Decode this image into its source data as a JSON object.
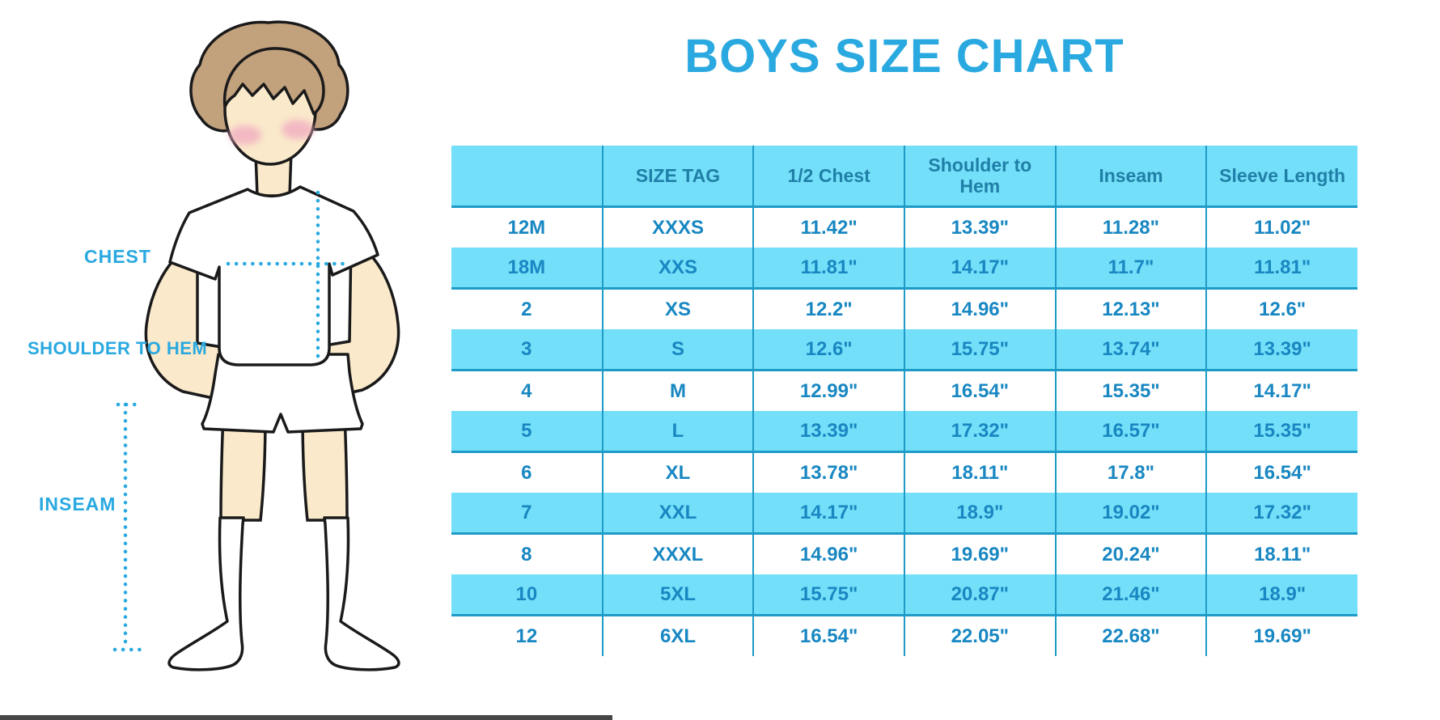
{
  "title": "BOYS SIZE CHART",
  "figure": {
    "chest_label": "CHEST",
    "shoulder_to_hem_label": "SHOULDER TO HEM",
    "inseam_label": "INSEAM"
  },
  "colors": {
    "accent_blue": "#29A9E0",
    "band_cyan": "#74DFF8",
    "grid_line": "#1E9BC6",
    "header_text": "#1F7FA8",
    "cell_text": "#1887C2",
    "skin": "#FAE9CA",
    "hair": "#C2A17D",
    "blush": "#F2AEC2"
  },
  "chart_data": {
    "type": "table",
    "title": "BOYS SIZE CHART",
    "columns": [
      "",
      "SIZE TAG",
      "1/2 Chest",
      "Shoulder to Hem",
      "Inseam",
      "Sleeve Length"
    ],
    "rows": [
      [
        "12M",
        "XXXS",
        "11.42\"",
        "13.39\"",
        "11.28\"",
        "11.02\""
      ],
      [
        "18M",
        "XXS",
        "11.81\"",
        "14.17\"",
        "11.7\"",
        "11.81\""
      ],
      [
        "2",
        "XS",
        "12.2\"",
        "14.96\"",
        "12.13\"",
        "12.6\""
      ],
      [
        "3",
        "S",
        "12.6\"",
        "15.75\"",
        "13.74\"",
        "13.39\""
      ],
      [
        "4",
        "M",
        "12.99\"",
        "16.54\"",
        "15.35\"",
        "14.17\""
      ],
      [
        "5",
        "L",
        "13.39\"",
        "17.32\"",
        "16.57\"",
        "15.35\""
      ],
      [
        "6",
        "XL",
        "13.78\"",
        "18.11\"",
        "17.8\"",
        "16.54\""
      ],
      [
        "7",
        "XXL",
        "14.17\"",
        "18.9\"",
        "19.02\"",
        "17.32\""
      ],
      [
        "8",
        "XXXL",
        "14.96\"",
        "19.69\"",
        "20.24\"",
        "18.11\""
      ],
      [
        "10",
        "5XL",
        "15.75\"",
        "20.87\"",
        "21.46\"",
        "18.9\""
      ],
      [
        "12",
        "6XL",
        "16.54\"",
        "22.05\"",
        "22.68\"",
        "19.69\""
      ]
    ]
  }
}
